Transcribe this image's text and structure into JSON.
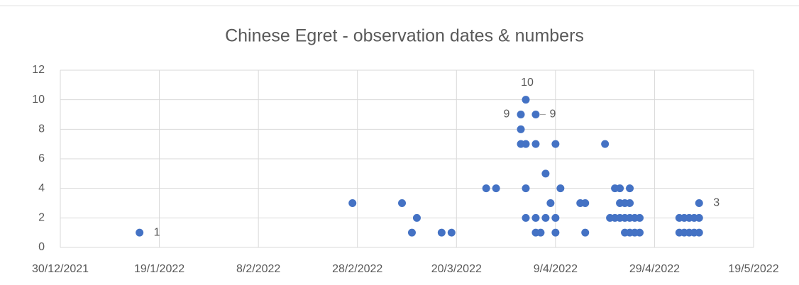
{
  "chart_data": {
    "type": "scatter",
    "title": "Chinese Egret - observation dates & numbers",
    "grid": true,
    "xlim": [
      "2021-12-30",
      "2022-05-19"
    ],
    "xticks": [
      {
        "value": "2021-12-30",
        "label": "30/12/2021"
      },
      {
        "value": "2022-01-19",
        "label": "19/1/2022"
      },
      {
        "value": "2022-02-08",
        "label": "8/2/2022"
      },
      {
        "value": "2022-02-28",
        "label": "28/2/2022"
      },
      {
        "value": "2022-03-20",
        "label": "20/3/2022"
      },
      {
        "value": "2022-04-09",
        "label": "9/4/2022"
      },
      {
        "value": "2022-04-29",
        "label": "29/4/2022"
      },
      {
        "value": "2022-05-19",
        "label": "19/5/2022"
      }
    ],
    "ylim": [
      0,
      12
    ],
    "yticks": [
      0,
      2,
      4,
      6,
      8,
      10,
      12
    ],
    "series": [
      {
        "color": "#4472c4",
        "x": [
          "2022-01-15",
          "2022-02-27",
          "2022-03-09",
          "2022-03-11",
          "2022-03-12",
          "2022-03-17",
          "2022-03-19",
          "2022-03-26",
          "2022-03-28",
          "2022-04-02",
          "2022-04-02",
          "2022-04-02",
          "2022-04-03",
          "2022-04-03",
          "2022-04-03",
          "2022-04-03",
          "2022-04-05",
          "2022-04-05",
          "2022-04-05",
          "2022-04-05",
          "2022-04-06",
          "2022-04-07",
          "2022-04-07",
          "2022-04-08",
          "2022-04-09",
          "2022-04-09",
          "2022-04-09",
          "2022-04-10",
          "2022-04-14",
          "2022-04-15",
          "2022-04-15",
          "2022-04-19",
          "2022-04-20",
          "2022-04-21",
          "2022-04-21",
          "2022-04-22",
          "2022-04-22",
          "2022-04-22",
          "2022-04-23",
          "2022-04-23",
          "2022-04-23",
          "2022-04-24",
          "2022-04-24",
          "2022-04-24",
          "2022-04-24",
          "2022-04-25",
          "2022-04-25",
          "2022-04-26",
          "2022-04-26",
          "2022-05-04",
          "2022-05-04",
          "2022-05-05",
          "2022-05-05",
          "2022-05-06",
          "2022-05-06",
          "2022-05-07",
          "2022-05-07",
          "2022-05-08",
          "2022-05-08",
          "2022-05-08"
        ],
        "values": [
          1,
          3,
          3,
          1,
          2,
          1,
          1,
          4,
          4,
          9,
          8,
          7,
          10,
          7,
          4,
          2,
          9,
          7,
          2,
          1,
          1,
          5,
          2,
          3,
          7,
          2,
          1,
          4,
          3,
          3,
          1,
          7,
          2,
          4,
          2,
          4,
          3,
          2,
          3,
          2,
          1,
          4,
          3,
          2,
          1,
          2,
          1,
          2,
          1,
          2,
          1,
          2,
          1,
          2,
          1,
          2,
          1,
          3,
          2,
          1
        ],
        "value_labels": [
          "1",
          null,
          null,
          null,
          null,
          null,
          null,
          null,
          null,
          "9",
          null,
          null,
          "10",
          null,
          null,
          null,
          "9",
          null,
          null,
          null,
          null,
          null,
          null,
          null,
          null,
          null,
          null,
          null,
          null,
          null,
          null,
          null,
          null,
          null,
          null,
          null,
          null,
          null,
          null,
          null,
          null,
          null,
          null,
          null,
          null,
          null,
          null,
          null,
          null,
          null,
          null,
          null,
          null,
          null,
          null,
          null,
          null,
          "3",
          null,
          null
        ]
      }
    ]
  }
}
